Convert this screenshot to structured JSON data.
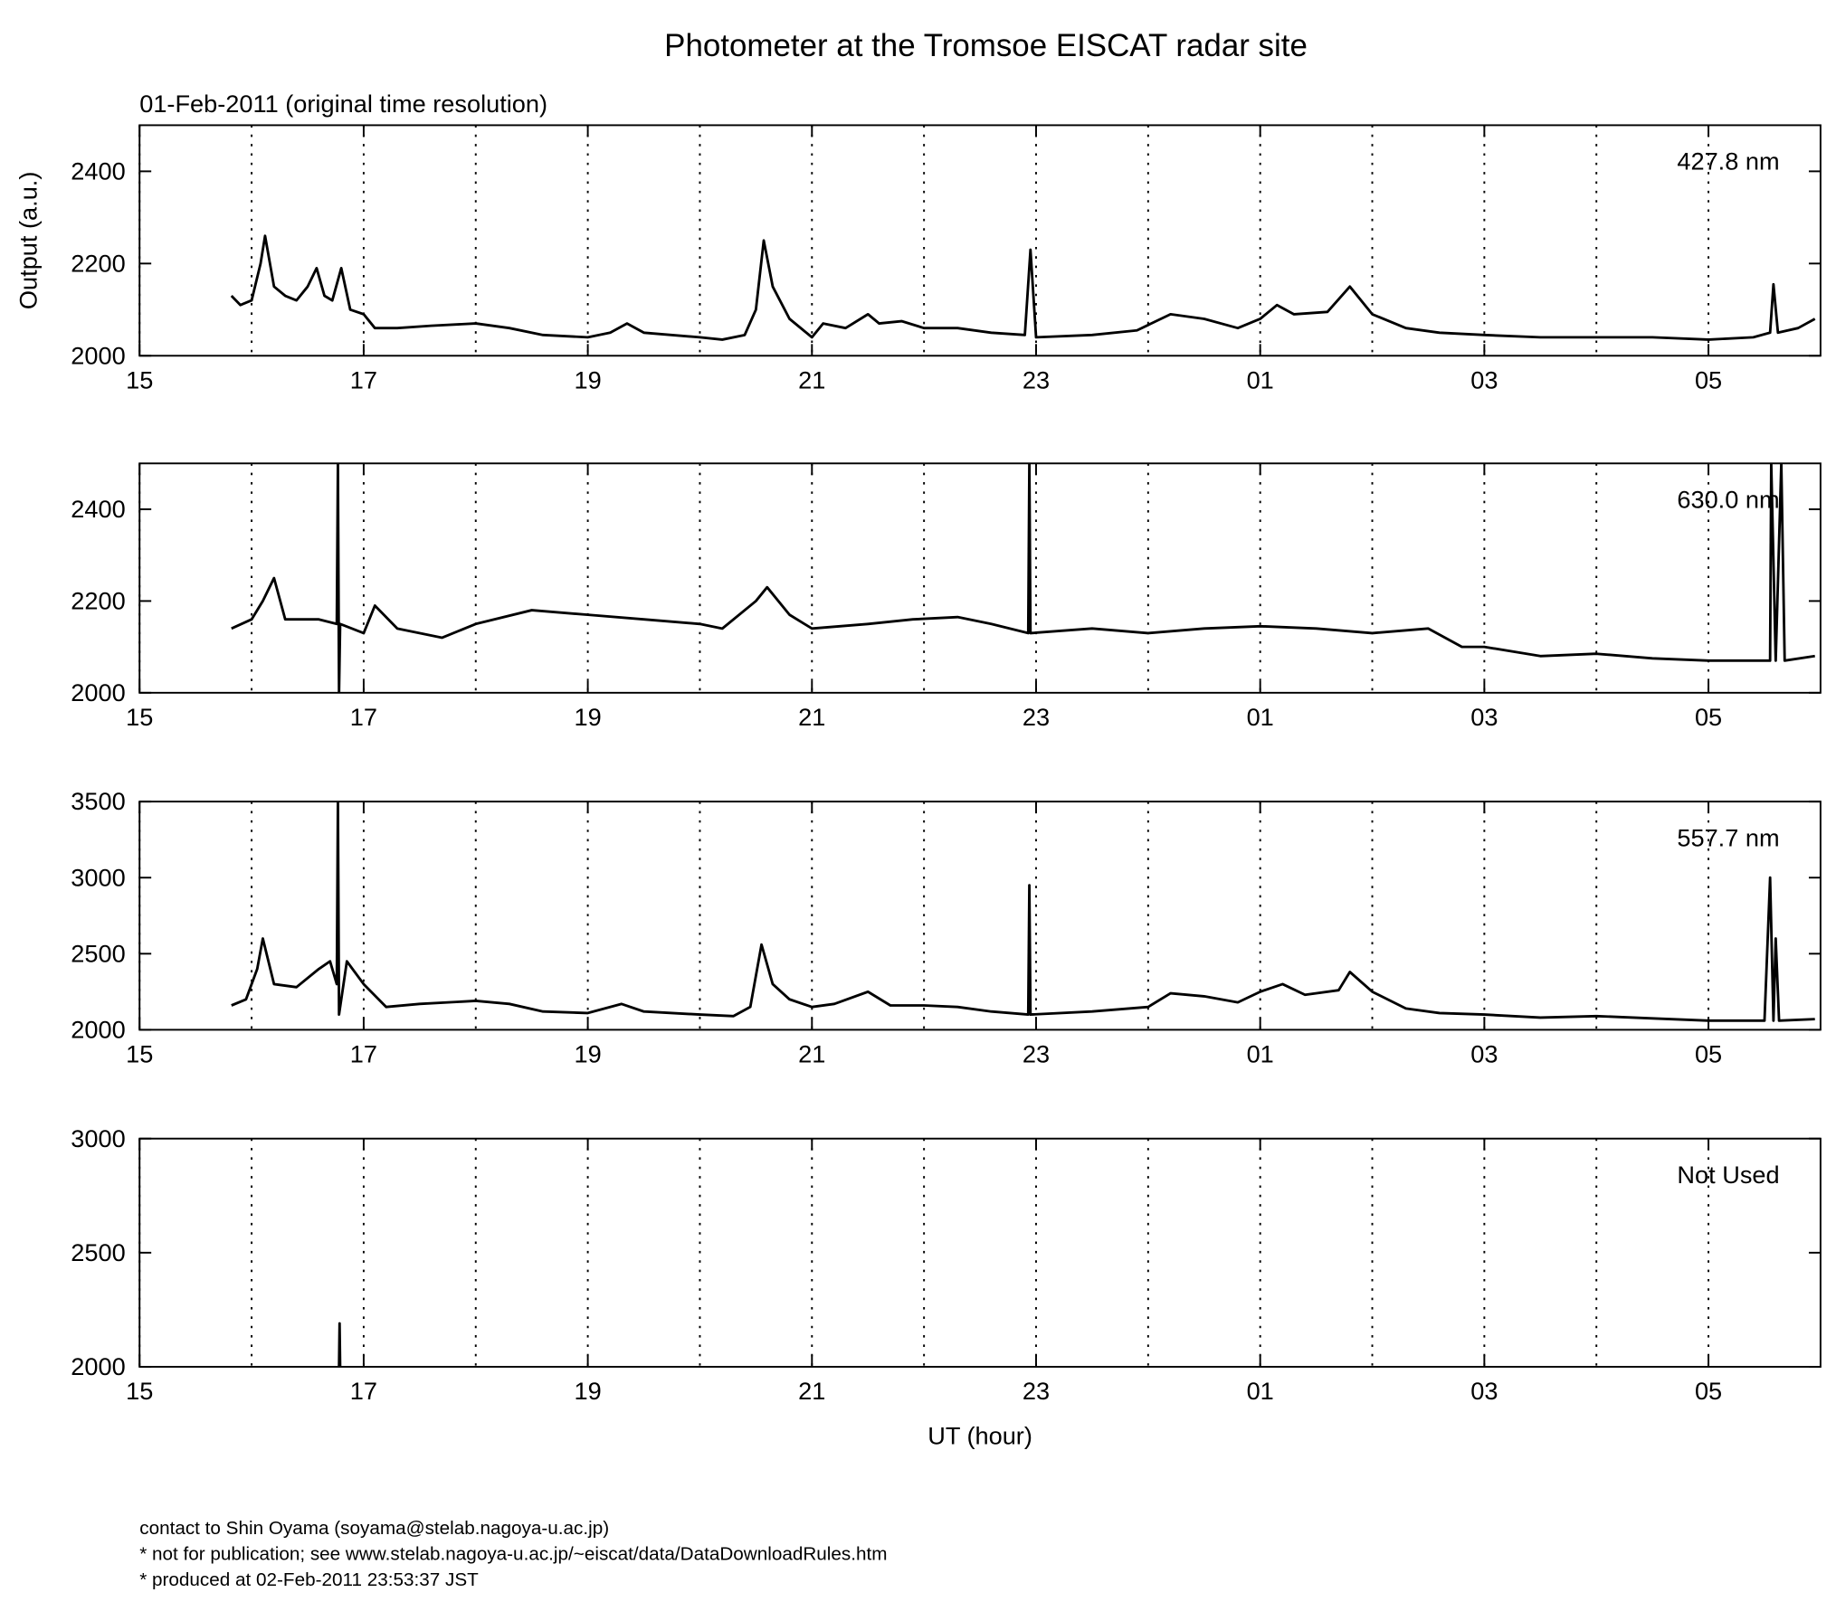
{
  "title": "Photometer at the Tromsoe EISCAT radar site",
  "subtitle": "01-Feb-2011 (original time resolution)",
  "footer": [
    "contact to Shin Oyama (soyama@stelab.nagoya-u.ac.jp)",
    "* not for publication; see www.stelab.nagoya-u.ac.jp/~eiscat/data/DataDownloadRules.htm",
    "* produced at 02-Feb-2011 23:53:37 JST"
  ],
  "chart_data": [
    {
      "type": "line",
      "label": "427.8 nm",
      "ylabel": "Output (a.u.)",
      "color": "#000000",
      "xlim": [
        15,
        30
      ],
      "xticks": [
        15,
        17,
        19,
        21,
        23,
        {
          "value": 25,
          "label": "01"
        },
        {
          "value": 27,
          "label": "03"
        },
        {
          "value": 29,
          "label": "05"
        }
      ],
      "minor_xticks": [
        16,
        18,
        20,
        22,
        24,
        26,
        28
      ],
      "grid": true,
      "ylim": [
        2000,
        2500
      ],
      "yticks": [
        2000,
        2200,
        2400
      ],
      "x": [
        15.82,
        15.9,
        16.0,
        16.08,
        16.12,
        16.2,
        16.3,
        16.4,
        16.5,
        16.58,
        16.65,
        16.72,
        16.8,
        16.88,
        17.0,
        17.1,
        17.3,
        17.6,
        18.0,
        18.3,
        18.6,
        19.0,
        19.2,
        19.35,
        19.5,
        20.0,
        20.2,
        20.4,
        20.5,
        20.57,
        20.65,
        20.8,
        21.0,
        21.1,
        21.3,
        21.5,
        21.6,
        21.8,
        22.0,
        22.3,
        22.6,
        22.9,
        22.95,
        23.0,
        23.5,
        23.9,
        24.2,
        24.5,
        24.8,
        25.0,
        25.15,
        25.3,
        25.6,
        25.8,
        26.0,
        26.3,
        26.6,
        27.0,
        27.5,
        28.0,
        28.5,
        29.0,
        29.4,
        29.55,
        29.58,
        29.62,
        29.8,
        29.95
      ],
      "values": [
        2130,
        2110,
        2120,
        2200,
        2260,
        2150,
        2130,
        2120,
        2150,
        2190,
        2130,
        2120,
        2190,
        2100,
        2090,
        2060,
        2060,
        2065,
        2070,
        2060,
        2045,
        2040,
        2050,
        2070,
        2050,
        2040,
        2035,
        2045,
        2100,
        2250,
        2150,
        2080,
        2040,
        2070,
        2060,
        2090,
        2070,
        2075,
        2060,
        2060,
        2050,
        2045,
        2230,
        2040,
        2045,
        2055,
        2090,
        2080,
        2060,
        2080,
        2110,
        2090,
        2095,
        2150,
        2090,
        2060,
        2050,
        2045,
        2040,
        2040,
        2040,
        2035,
        2040,
        2050,
        2155,
        2050,
        2060,
        2080
      ]
    },
    {
      "type": "line",
      "label": "630.0 nm",
      "color": "#000000",
      "xlim": [
        15,
        30
      ],
      "xticks": [
        15,
        17,
        19,
        21,
        23,
        {
          "value": 25,
          "label": "01"
        },
        {
          "value": 27,
          "label": "03"
        },
        {
          "value": 29,
          "label": "05"
        }
      ],
      "minor_xticks": [
        16,
        18,
        20,
        22,
        24,
        26,
        28
      ],
      "grid": true,
      "ylim": [
        2000,
        2500
      ],
      "yticks": [
        2000,
        2200,
        2400
      ],
      "x": [
        15.82,
        16.0,
        16.1,
        16.2,
        16.3,
        16.6,
        16.76,
        16.77,
        16.78,
        16.79,
        17.0,
        17.1,
        17.3,
        17.7,
        18.0,
        18.5,
        19.0,
        19.5,
        20.0,
        20.2,
        20.5,
        20.6,
        20.8,
        21.0,
        21.5,
        21.9,
        22.3,
        22.6,
        22.93,
        22.94,
        22.95,
        23.5,
        24.0,
        24.5,
        25.0,
        25.5,
        26.0,
        26.5,
        26.8,
        27.0,
        27.5,
        28.0,
        28.5,
        29.0,
        29.55,
        29.56,
        29.6,
        29.65,
        29.68,
        29.95
      ],
      "values": [
        2140,
        2160,
        2200,
        2250,
        2160,
        2160,
        2150,
        2500,
        2000,
        2150,
        2130,
        2190,
        2140,
        2120,
        2150,
        2180,
        2170,
        2160,
        2150,
        2140,
        2200,
        2230,
        2170,
        2140,
        2150,
        2160,
        2165,
        2150,
        2130,
        2500,
        2130,
        2140,
        2130,
        2140,
        2145,
        2140,
        2130,
        2140,
        2100,
        2100,
        2080,
        2085,
        2075,
        2070,
        2070,
        2500,
        2070,
        2500,
        2070,
        2080
      ]
    },
    {
      "type": "line",
      "label": "557.7 nm",
      "color": "#000000",
      "xlim": [
        15,
        30
      ],
      "xticks": [
        15,
        17,
        19,
        21,
        23,
        {
          "value": 25,
          "label": "01"
        },
        {
          "value": 27,
          "label": "03"
        },
        {
          "value": 29,
          "label": "05"
        }
      ],
      "minor_xticks": [
        16,
        18,
        20,
        22,
        24,
        26,
        28
      ],
      "grid": true,
      "ylim": [
        2000,
        3500
      ],
      "yticks": [
        2000,
        2500,
        3000,
        3500
      ],
      "x": [
        15.82,
        15.95,
        16.05,
        16.1,
        16.2,
        16.4,
        16.6,
        16.7,
        16.76,
        16.77,
        16.78,
        16.85,
        17.0,
        17.2,
        17.5,
        18.0,
        18.3,
        18.6,
        19.0,
        19.3,
        19.5,
        20.0,
        20.3,
        20.45,
        20.55,
        20.65,
        20.8,
        21.0,
        21.2,
        21.5,
        21.7,
        22.0,
        22.3,
        22.6,
        22.93,
        22.94,
        22.95,
        23.5,
        24.0,
        24.2,
        24.5,
        24.8,
        25.0,
        25.2,
        25.4,
        25.7,
        25.8,
        26.0,
        26.3,
        26.6,
        27.0,
        27.5,
        28.0,
        28.5,
        29.0,
        29.5,
        29.55,
        29.58,
        29.6,
        29.63,
        29.95
      ],
      "values": [
        2160,
        2200,
        2400,
        2600,
        2300,
        2280,
        2400,
        2450,
        2300,
        3500,
        2100,
        2450,
        2300,
        2150,
        2170,
        2190,
        2170,
        2120,
        2110,
        2170,
        2120,
        2100,
        2090,
        2150,
        2560,
        2300,
        2200,
        2150,
        2170,
        2250,
        2160,
        2160,
        2150,
        2120,
        2100,
        2950,
        2100,
        2120,
        2150,
        2240,
        2220,
        2180,
        2250,
        2300,
        2230,
        2260,
        2380,
        2250,
        2140,
        2110,
        2100,
        2080,
        2090,
        2075,
        2060,
        2060,
        3000,
        2060,
        2600,
        2060,
        2070
      ]
    },
    {
      "type": "line",
      "label": "Not Used",
      "xlabel": "UT (hour)",
      "color": "#000000",
      "xlim": [
        15,
        30
      ],
      "xticks": [
        15,
        17,
        19,
        21,
        23,
        {
          "value": 25,
          "label": "01"
        },
        {
          "value": 27,
          "label": "03"
        },
        {
          "value": 29,
          "label": "05"
        }
      ],
      "minor_xticks": [
        16,
        18,
        20,
        22,
        24,
        26,
        28
      ],
      "grid": true,
      "ylim": [
        2000,
        3000
      ],
      "yticks": [
        2000,
        2500,
        3000
      ],
      "x": [
        16.78,
        16.785,
        16.79
      ],
      "values": [
        2000,
        2190,
        2000
      ]
    }
  ]
}
